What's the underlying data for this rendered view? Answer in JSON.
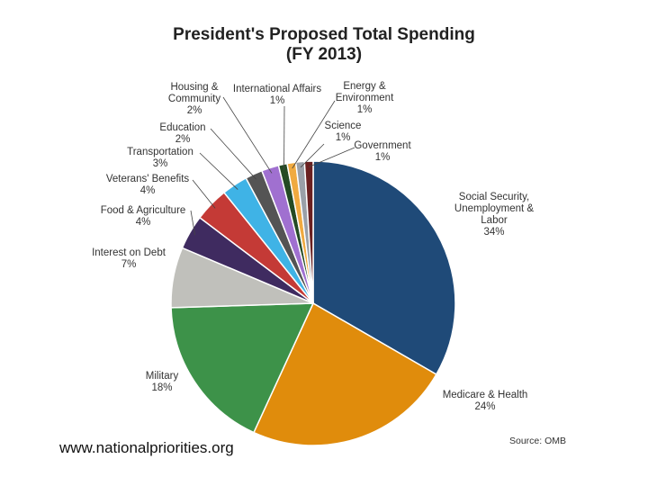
{
  "chart_data": {
    "type": "pie",
    "title": "President's Proposed Total Spending",
    "subtitle": "(FY 2013)",
    "slices": [
      {
        "key": "social_security",
        "lines": [
          "Social Security,",
          "Unemployment &",
          "Labor"
        ],
        "pct_label": "34%",
        "value": 34,
        "color": "#1f4a78"
      },
      {
        "key": "medicare",
        "lines": [
          "Medicare & Health"
        ],
        "pct_label": "24%",
        "value": 24,
        "color": "#e08c0c"
      },
      {
        "key": "military",
        "lines": [
          "Military"
        ],
        "pct_label": "18%",
        "value": 18,
        "color": "#3d9249"
      },
      {
        "key": "interest",
        "lines": [
          "Interest on Debt"
        ],
        "pct_label": "7%",
        "value": 7,
        "color": "#c0c0bb"
      },
      {
        "key": "food",
        "lines": [
          "Food & Agriculture"
        ],
        "pct_label": "4%",
        "value": 4,
        "color": "#3f2b60"
      },
      {
        "key": "veterans",
        "lines": [
          "Veterans' Benefits"
        ],
        "pct_label": "4%",
        "value": 4,
        "color": "#c43a36"
      },
      {
        "key": "transportation",
        "lines": [
          "Transportation"
        ],
        "pct_label": "3%",
        "value": 3,
        "color": "#3fb3e6"
      },
      {
        "key": "education",
        "lines": [
          "Education"
        ],
        "pct_label": "2%",
        "value": 2,
        "color": "#545454"
      },
      {
        "key": "housing",
        "lines": [
          "Housing &",
          "Community"
        ],
        "pct_label": "2%",
        "value": 2,
        "color": "#a070d0"
      },
      {
        "key": "international",
        "lines": [
          "International Affairs"
        ],
        "pct_label": "1%",
        "value": 1,
        "color": "#244a24"
      },
      {
        "key": "energy",
        "lines": [
          "Energy &",
          "Environment"
        ],
        "pct_label": "1%",
        "value": 1,
        "color": "#f0aa40"
      },
      {
        "key": "science",
        "lines": [
          "Science"
        ],
        "pct_label": "1%",
        "value": 1,
        "color": "#9aa0a8"
      },
      {
        "key": "government",
        "lines": [
          "Government"
        ],
        "pct_label": "1%",
        "value": 1,
        "color": "#6a2020"
      }
    ]
  },
  "footer": {
    "site": "www.nationalpriorities.org",
    "source": "Source: OMB"
  }
}
